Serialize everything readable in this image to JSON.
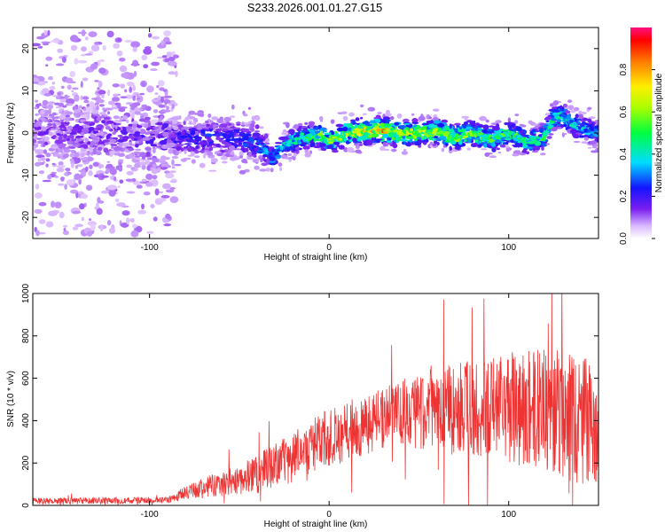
{
  "title": "S233.2026.001.01.27.G15",
  "chart_data": [
    {
      "type": "heatmap",
      "xlabel": "Height of straight line (km)",
      "ylabel": "Frequency (Hz)",
      "xlim": [
        -165,
        150
      ],
      "ylim": [
        -25,
        25
      ],
      "xticks": [
        -100,
        0,
        100
      ],
      "yticks": [
        -20,
        -10,
        0,
        10,
        20
      ],
      "ridge": {
        "x": [
          -165,
          -140,
          -120,
          -100,
          -80,
          -60,
          -40,
          -32,
          -25,
          -15,
          -5,
          0,
          10,
          20,
          30,
          40,
          50,
          60,
          70,
          80,
          90,
          100,
          110,
          120,
          125,
          130,
          140,
          150
        ],
        "freq": [
          0,
          0,
          0,
          -1,
          -1,
          -1,
          -2,
          -6,
          -3,
          -1,
          -0.5,
          -2,
          0,
          0.5,
          0.5,
          0,
          0,
          0.5,
          -1,
          0,
          -1.5,
          0,
          -2,
          -1,
          4,
          4,
          1,
          0
        ]
      },
      "ridge_amplitude": {
        "x": [
          -165,
          -100,
          -80,
          -40,
          -30,
          0,
          20,
          30,
          40,
          60,
          80,
          100,
          120,
          150
        ],
        "amp": [
          0.12,
          0.15,
          0.2,
          0.25,
          0.3,
          0.5,
          0.6,
          0.7,
          0.55,
          0.55,
          0.5,
          0.45,
          0.4,
          0.3
        ]
      },
      "colorbar": {
        "label": "Normalized spectral amplitude",
        "range": [
          0.0,
          1.0
        ],
        "ticks": [
          "0.0",
          "0.2",
          "0.4",
          "0.6",
          "0.8"
        ]
      }
    },
    {
      "type": "line",
      "xlabel": "Height of straight line (km)",
      "ylabel": "SNR (10 * v/v)",
      "xlim": [
        -165,
        150
      ],
      "ylim": [
        0,
        1000
      ],
      "xticks": [
        -100,
        0,
        100
      ],
      "yticks": [
        0,
        200,
        400,
        600,
        800,
        1000
      ],
      "color": "#ee3333",
      "trend": {
        "x": [
          -165,
          -90,
          -80,
          -60,
          -40,
          -20,
          0,
          20,
          40,
          60,
          80,
          100,
          120,
          140,
          150
        ],
        "snr": [
          20,
          25,
          60,
          100,
          150,
          230,
          320,
          380,
          440,
          460,
          460,
          460,
          450,
          400,
          380
        ]
      },
      "noise": {
        "x": [
          -165,
          -90,
          -70,
          -40,
          -20,
          0,
          40,
          60,
          80,
          100,
          120,
          150
        ],
        "amp": [
          15,
          15,
          50,
          90,
          120,
          140,
          150,
          220,
          220,
          260,
          300,
          300
        ]
      }
    }
  ]
}
